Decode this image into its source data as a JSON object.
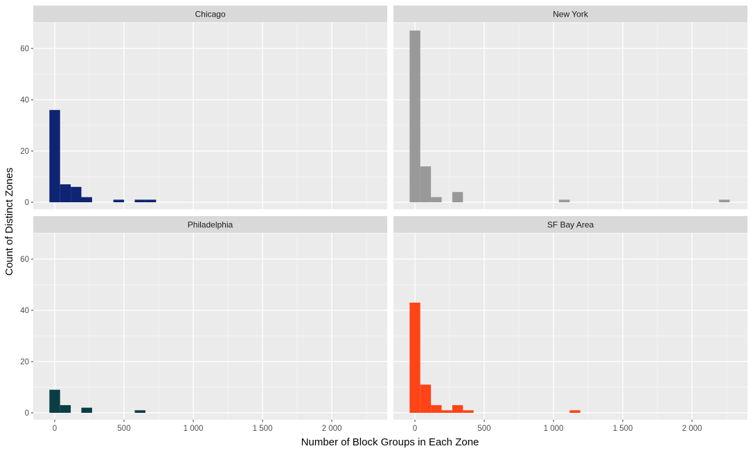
{
  "chart_data": {
    "type": "bar",
    "subtype": "faceted histogram",
    "xlabel": "Number of Block Groups in Each Zone",
    "ylabel": "Count of Distinct Zones",
    "xlim": [
      -120,
      2330
    ],
    "ylim": [
      -3,
      70.5
    ],
    "x_ticks": [
      {
        "value": 0,
        "label": "0"
      },
      {
        "value": 500,
        "label": "500"
      },
      {
        "value": 1000,
        "label": "1 000"
      },
      {
        "value": 1500,
        "label": "1 500"
      },
      {
        "value": 2000,
        "label": "2 000"
      }
    ],
    "y_ticks": [
      {
        "value": 0,
        "label": "0"
      },
      {
        "value": 20,
        "label": "20"
      },
      {
        "value": 40,
        "label": "40"
      },
      {
        "value": 60,
        "label": "60"
      }
    ],
    "bin_width": 77,
    "grid": true,
    "legend": "none",
    "facets": [
      {
        "name": "Chicago",
        "color": "#0F2573",
        "bins": [
          {
            "x": 0,
            "count": 36
          },
          {
            "x": 77,
            "count": 7
          },
          {
            "x": 154,
            "count": 6
          },
          {
            "x": 231,
            "count": 2
          },
          {
            "x": 462,
            "count": 1
          },
          {
            "x": 616,
            "count": 1
          },
          {
            "x": 693,
            "count": 1
          }
        ]
      },
      {
        "name": "New York",
        "color": "#999999",
        "bins": [
          {
            "x": 0,
            "count": 67
          },
          {
            "x": 77,
            "count": 14
          },
          {
            "x": 154,
            "count": 2
          },
          {
            "x": 308,
            "count": 4
          },
          {
            "x": 1078,
            "count": 1
          },
          {
            "x": 2233,
            "count": 1
          }
        ]
      },
      {
        "name": "Philadelphia",
        "color": "#0B3D45",
        "bins": [
          {
            "x": 0,
            "count": 9
          },
          {
            "x": 77,
            "count": 3
          },
          {
            "x": 231,
            "count": 2
          },
          {
            "x": 616,
            "count": 1
          }
        ]
      },
      {
        "name": "SF Bay Area",
        "color": "#FF4417",
        "bins": [
          {
            "x": 0,
            "count": 43
          },
          {
            "x": 77,
            "count": 11
          },
          {
            "x": 154,
            "count": 3
          },
          {
            "x": 231,
            "count": 1
          },
          {
            "x": 308,
            "count": 3
          },
          {
            "x": 385,
            "count": 1
          },
          {
            "x": 1155,
            "count": 1
          }
        ]
      }
    ]
  }
}
